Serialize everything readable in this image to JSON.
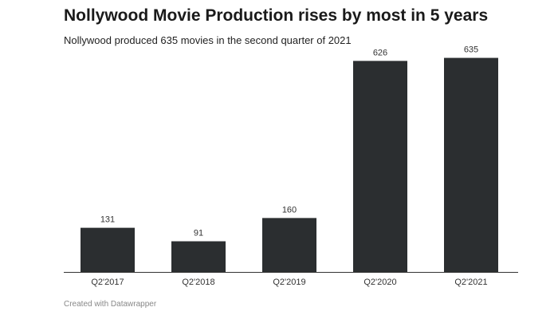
{
  "header": {
    "title": "Nollywood Movie Production rises by most in 5 years",
    "subtitle": "Nollywood produced 635 movies in the second quarter of 2021"
  },
  "footer": {
    "credit": "Created with Datawrapper"
  },
  "colors": {
    "bar": "#2b2e30",
    "axis": "#333333",
    "label": "#333333"
  },
  "chart_data": {
    "type": "bar",
    "categories": [
      "Q2'2017",
      "Q2'2018",
      "Q2'2019",
      "Q2'2020",
      "Q2'2021"
    ],
    "values": [
      131,
      91,
      160,
      626,
      635
    ],
    "title": "Nollywood Movie Production rises by most in 5 years",
    "subtitle": "Nollywood produced 635 movies in the second quarter of 2021",
    "ylim": [
      0,
      660
    ],
    "grid": false
  }
}
